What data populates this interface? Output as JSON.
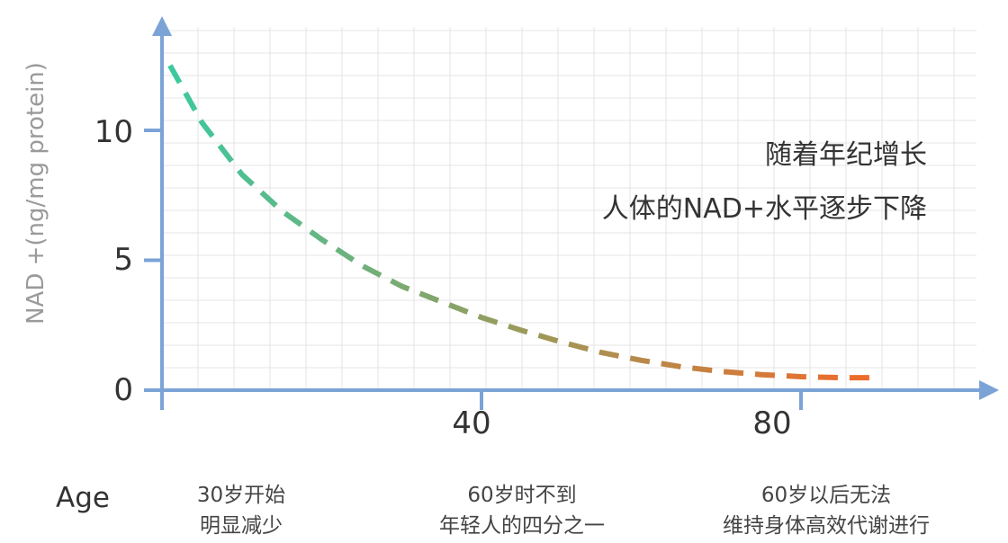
{
  "chart_data": {
    "type": "line",
    "xlabel": "Age",
    "ylabel": "NAD +(ng/mg protein)",
    "xlim": [
      0,
      104
    ],
    "ylim": [
      0,
      15
    ],
    "grid": true,
    "x_ticks": [
      "40",
      "80"
    ],
    "y_ticks": [
      "0",
      "5",
      "10"
    ],
    "series": [
      {
        "line_style": "dashed",
        "gradient_colors": [
          "#3cc9a0",
          "#9a9a5a",
          "#f06a2a"
        ],
        "x": [
          1,
          5,
          10,
          15,
          20,
          25,
          30,
          35,
          40,
          45,
          50,
          55,
          60,
          65,
          70,
          75,
          80,
          85,
          89
        ],
        "y": [
          12.5,
          10.3,
          8.3,
          6.9,
          5.8,
          4.8,
          4.0,
          3.4,
          2.8,
          2.3,
          1.85,
          1.45,
          1.15,
          0.9,
          0.72,
          0.6,
          0.52,
          0.48,
          0.48
        ]
      }
    ],
    "annotations": {
      "line1": "随着年纪增长",
      "line2": "人体的NAD+水平逐步下降"
    },
    "notes": [
      {
        "line1": "30岁开始",
        "line2": "明显减少"
      },
      {
        "line1": "60岁时不到",
        "line2": "年轻人的四分之一"
      },
      {
        "line1": "60岁以后无法",
        "line2": "维持身体高效代谢进行"
      }
    ]
  },
  "colors": {
    "axis": "#7ba3d6",
    "grid": "#e4e4e4",
    "text": "#333333",
    "ylabel": "#9a9a9a"
  }
}
